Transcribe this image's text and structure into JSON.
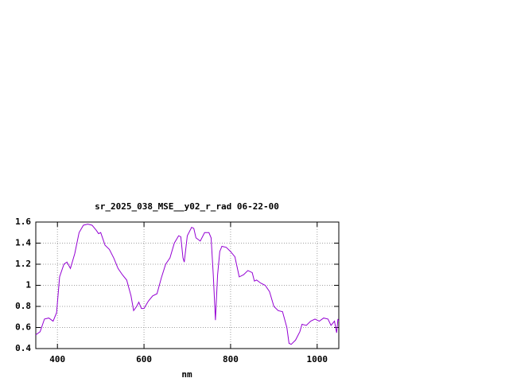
{
  "chart_data": {
    "type": "line",
    "title": "sr_2025_038_MSE__y02_r_rad 06-22-00",
    "x_label": "nm",
    "x": [
      350,
      360,
      370,
      380,
      390,
      398,
      405,
      415,
      422,
      430,
      440,
      450,
      460,
      470,
      480,
      490,
      495,
      500,
      510,
      520,
      530,
      540,
      550,
      560,
      570,
      576,
      583,
      588,
      594,
      600,
      610,
      620,
      630,
      640,
      650,
      660,
      670,
      680,
      685,
      690,
      693,
      700,
      710,
      715,
      720,
      730,
      740,
      750,
      755,
      760,
      765,
      770,
      775,
      780,
      790,
      800,
      810,
      820,
      830,
      840,
      850,
      855,
      860,
      870,
      880,
      890,
      900,
      910,
      920,
      930,
      935,
      940,
      950,
      960,
      965,
      975,
      985,
      995,
      1005,
      1015,
      1025,
      1032,
      1040,
      1045,
      1048,
      1050
    ],
    "series": [
      {
        "name": "sr_2025_038_MSE__y02_r_rad",
        "color": "#9400d3",
        "values": [
          0.53,
          0.56,
          0.68,
          0.69,
          0.66,
          0.74,
          1.08,
          1.2,
          1.22,
          1.16,
          1.3,
          1.5,
          1.57,
          1.58,
          1.57,
          1.52,
          1.49,
          1.5,
          1.38,
          1.34,
          1.26,
          1.16,
          1.1,
          1.05,
          0.9,
          0.76,
          0.8,
          0.84,
          0.78,
          0.78,
          0.85,
          0.9,
          0.92,
          1.07,
          1.2,
          1.26,
          1.4,
          1.47,
          1.46,
          1.26,
          1.22,
          1.47,
          1.55,
          1.54,
          1.45,
          1.42,
          1.5,
          1.5,
          1.45,
          1.1,
          0.67,
          1.1,
          1.32,
          1.37,
          1.36,
          1.32,
          1.27,
          1.08,
          1.1,
          1.14,
          1.12,
          1.04,
          1.05,
          1.02,
          1.0,
          0.94,
          0.8,
          0.76,
          0.75,
          0.6,
          0.45,
          0.44,
          0.48,
          0.56,
          0.63,
          0.62,
          0.66,
          0.68,
          0.66,
          0.69,
          0.68,
          0.62,
          0.66,
          0.55,
          0.68,
          0.66
        ]
      }
    ],
    "xlim": [
      350,
      1050
    ],
    "xticks": [
      400,
      600,
      800,
      1000
    ],
    "ylim": [
      0.4,
      1.6
    ],
    "yticks": [
      0.4,
      0.6,
      0.8,
      1,
      1.2,
      1.4,
      1.6
    ],
    "grid": true
  }
}
